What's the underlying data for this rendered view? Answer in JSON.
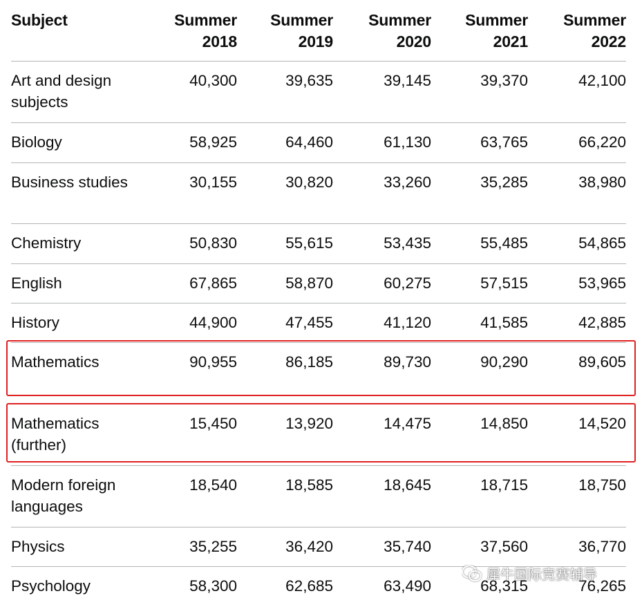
{
  "table": {
    "headers": [
      [
        "Subject"
      ],
      [
        "Summer",
        "2018"
      ],
      [
        "Summer",
        "2019"
      ],
      [
        "Summer",
        "2020"
      ],
      [
        "Summer",
        "2021"
      ],
      [
        "Summer",
        "2022"
      ]
    ],
    "rows": [
      {
        "subject": [
          "Art and design",
          "subjects"
        ],
        "values": [
          "40,300",
          "39,635",
          "39,145",
          "39,370",
          "42,100"
        ]
      },
      {
        "subject": [
          "Biology"
        ],
        "values": [
          "58,925",
          "64,460",
          "61,130",
          "63,765",
          "66,220"
        ]
      },
      {
        "subject": [
          "Business studies"
        ],
        "values": [
          "30,155",
          "30,820",
          "33,260",
          "35,285",
          "38,980"
        ]
      },
      {
        "subject": [
          "Chemistry"
        ],
        "values": [
          "50,830",
          "55,615",
          "53,435",
          "55,485",
          "54,865"
        ]
      },
      {
        "subject": [
          "English"
        ],
        "values": [
          "67,865",
          "58,870",
          "60,275",
          "57,515",
          "53,965"
        ]
      },
      {
        "subject": [
          "History"
        ],
        "values": [
          "44,900",
          "47,455",
          "41,120",
          "41,585",
          "42,885"
        ]
      },
      {
        "subject": [
          "Mathematics"
        ],
        "values": [
          "90,955",
          "86,185",
          "89,730",
          "90,290",
          "89,605"
        ]
      },
      {
        "subject": [
          "Mathematics",
          "(further)"
        ],
        "values": [
          "15,450",
          "13,920",
          "14,475",
          "14,850",
          "14,520"
        ]
      },
      {
        "subject": [
          "Modern foreign",
          "languages"
        ],
        "values": [
          "18,540",
          "18,585",
          "18,645",
          "18,715",
          "18,750"
        ]
      },
      {
        "subject": [
          "Physics"
        ],
        "values": [
          "35,255",
          "36,420",
          "35,740",
          "37,560",
          "36,770"
        ]
      },
      {
        "subject": [
          "Psychology"
        ],
        "values": [
          "58,300",
          "62,685",
          "63,490",
          "68,315",
          "76,265"
        ]
      }
    ]
  },
  "highlight_color": "#e02020",
  "watermark": {
    "icon": "wechat-icon",
    "text": "犀牛国际竞赛辅导"
  }
}
